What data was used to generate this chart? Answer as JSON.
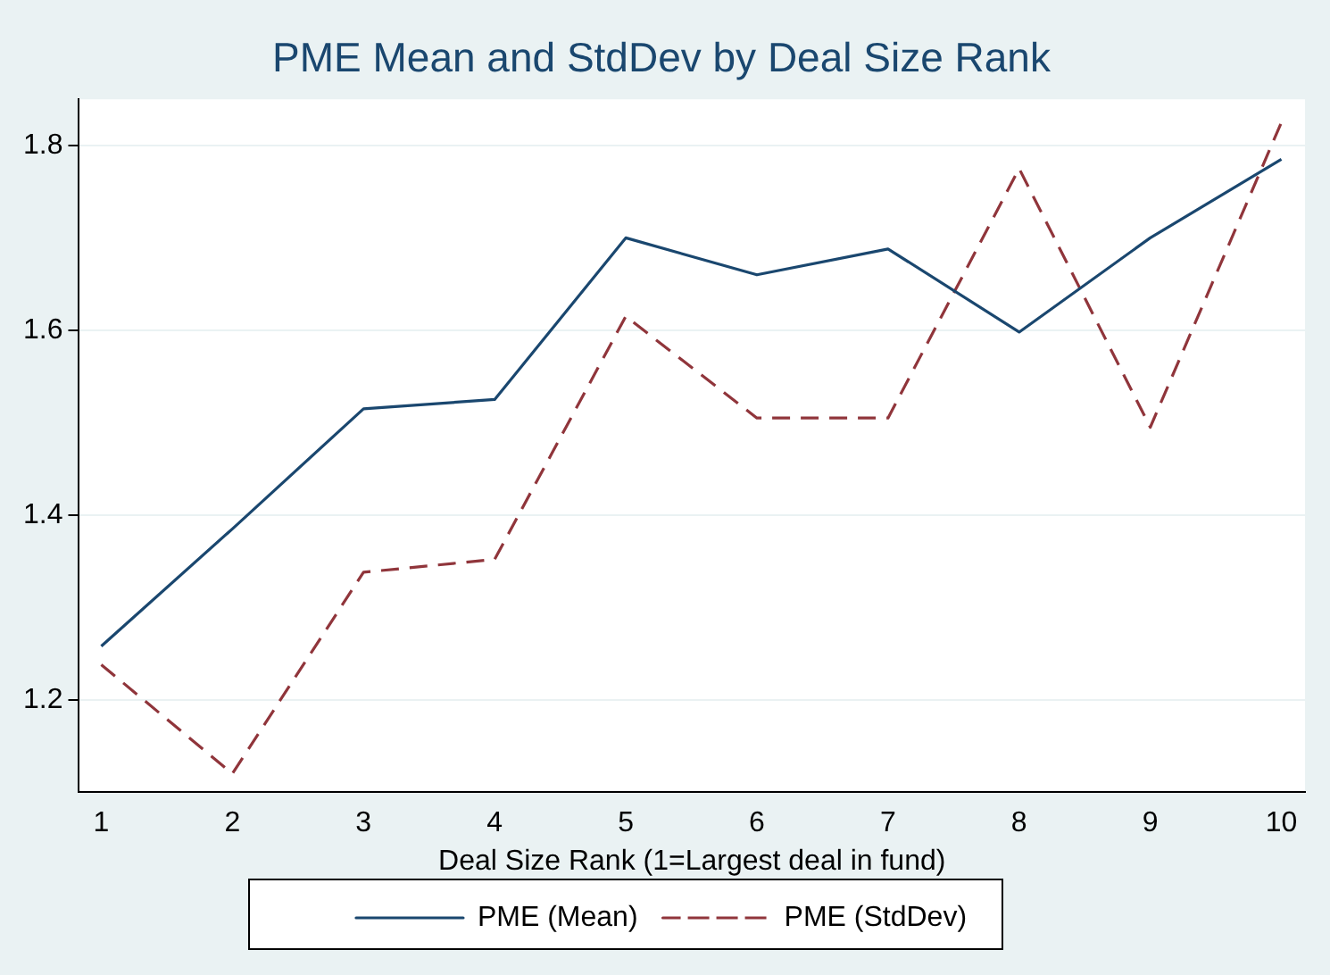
{
  "chart_data": {
    "type": "line",
    "title": "PME Mean and StdDev by Deal Size Rank",
    "xlabel": "Deal Size Rank (1=Largest deal in fund)",
    "x": [
      1,
      2,
      3,
      4,
      5,
      6,
      7,
      8,
      9,
      10
    ],
    "series": [
      {
        "name": "PME (Mean)",
        "color": "#1a476f",
        "line_style": "solid",
        "values": [
          1.258,
          1.385,
          1.515,
          1.525,
          1.7,
          1.66,
          1.688,
          1.598,
          1.7,
          1.785
        ]
      },
      {
        "name": "PME (StdDev)",
        "color": "#90353b",
        "line_style": "dashed",
        "values": [
          1.238,
          1.12,
          1.338,
          1.352,
          1.615,
          1.505,
          1.505,
          1.775,
          1.495,
          1.825
        ]
      }
    ],
    "xlim": [
      0.83,
      10.18
    ],
    "xticks": [
      1,
      2,
      3,
      4,
      5,
      6,
      7,
      8,
      9,
      10
    ],
    "ylim": [
      1.1,
      1.85
    ],
    "yticks": [
      1.2,
      1.4,
      1.6,
      1.8
    ],
    "grid": "y",
    "legend": "bottom",
    "marker": "none"
  }
}
